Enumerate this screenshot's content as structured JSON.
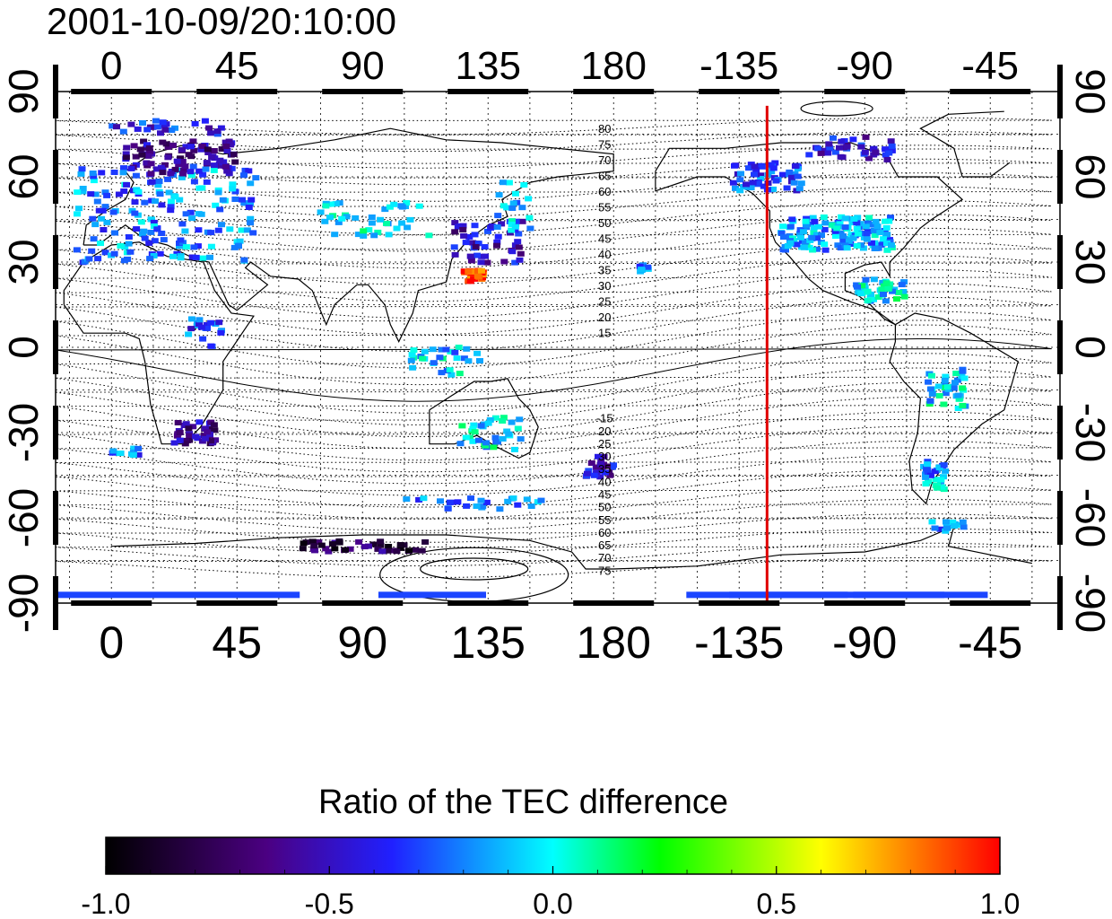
{
  "timestamp": "2001-10-09/20:10:00",
  "colorbar": {
    "title": "Ratio of the TEC difference",
    "ticks": [
      "-1.0",
      "-0.5",
      "0.0",
      "0.5",
      "1.0"
    ],
    "stops": [
      "#000000",
      "#4b0082",
      "#2020ff",
      "#00ffff",
      "#00ff00",
      "#ffff00",
      "#ff0000"
    ],
    "range": [
      -1.0,
      1.0
    ]
  },
  "axes": {
    "lon_ticks": [
      "0",
      "45",
      "90",
      "135",
      "180",
      "-135",
      "-90",
      "-45"
    ],
    "lat_ticks": [
      "90",
      "60",
      "30",
      "0",
      "-30",
      "-60",
      "-90"
    ]
  },
  "contour_labels_north": [
    "80",
    "75",
    "70",
    "65",
    "60",
    "55",
    "50",
    "45",
    "40",
    "35",
    "30",
    "25",
    "20",
    "15"
  ],
  "contour_labels_south": [
    "-15",
    "20",
    "25",
    "30",
    "35",
    "40",
    "45",
    "50",
    "55",
    "60",
    "65",
    "70",
    "75"
  ],
  "terminator": {
    "color": "#e00000",
    "longitude": -125
  },
  "clusters": [
    {
      "lon": 20,
      "lat": 47,
      "w": 65,
      "h": 35,
      "v": -0.2,
      "n": 180
    },
    {
      "lon": 25,
      "lat": 67,
      "w": 40,
      "h": 12,
      "v": -0.6,
      "n": 90
    },
    {
      "lon": 20,
      "lat": 78,
      "w": 40,
      "h": 6,
      "v": -0.4,
      "n": 25
    },
    {
      "lon": 95,
      "lat": 45,
      "w": 40,
      "h": 12,
      "v": -0.05,
      "n": 40
    },
    {
      "lon": 135,
      "lat": 37,
      "w": 25,
      "h": 15,
      "v": -0.5,
      "n": 50
    },
    {
      "lon": 130,
      "lat": 25,
      "w": 8,
      "h": 4,
      "v": 0.95,
      "n": 30
    },
    {
      "lon": 145,
      "lat": 50,
      "w": 15,
      "h": 18,
      "v": -0.1,
      "n": 20
    },
    {
      "lon": 30,
      "lat": -30,
      "w": 15,
      "h": 8,
      "v": -0.6,
      "n": 40
    },
    {
      "lon": 120,
      "lat": -5,
      "w": 25,
      "h": 10,
      "v": -0.1,
      "n": 30
    },
    {
      "lon": 135,
      "lat": -30,
      "w": 25,
      "h": 12,
      "v": -0.05,
      "n": 35
    },
    {
      "lon": 175,
      "lat": -42,
      "w": 10,
      "h": 8,
      "v": -0.5,
      "n": 25
    },
    {
      "lon": 35,
      "lat": 5,
      "w": 15,
      "h": 10,
      "v": -0.3,
      "n": 20
    },
    {
      "lon": -100,
      "lat": 40,
      "w": 40,
      "h": 12,
      "v": -0.15,
      "n": 140
    },
    {
      "lon": -125,
      "lat": 60,
      "w": 25,
      "h": 10,
      "v": -0.3,
      "n": 60
    },
    {
      "lon": -95,
      "lat": 70,
      "w": 30,
      "h": 8,
      "v": -0.45,
      "n": 40
    },
    {
      "lon": -85,
      "lat": 20,
      "w": 20,
      "h": 8,
      "v": -0.05,
      "n": 40
    },
    {
      "lon": -60,
      "lat": -15,
      "w": 15,
      "h": 15,
      "v": -0.05,
      "n": 40
    },
    {
      "lon": -65,
      "lat": -45,
      "w": 8,
      "h": 10,
      "v": -0.15,
      "n": 30
    },
    {
      "lon": -60,
      "lat": -63,
      "w": 12,
      "h": 4,
      "v": -0.25,
      "n": 15
    },
    {
      "lon": 90,
      "lat": -70,
      "w": 45,
      "h": 4,
      "v": -0.75,
      "n": 40
    },
    {
      "lon": -170,
      "lat": 28,
      "w": 5,
      "h": 3,
      "v": -0.2,
      "n": 8
    },
    {
      "lon": 130,
      "lat": -55,
      "w": 50,
      "h": 4,
      "v": -0.2,
      "n": 25
    },
    {
      "lon": 5,
      "lat": -37,
      "w": 10,
      "h": 3,
      "v": -0.25,
      "n": 10
    }
  ]
}
